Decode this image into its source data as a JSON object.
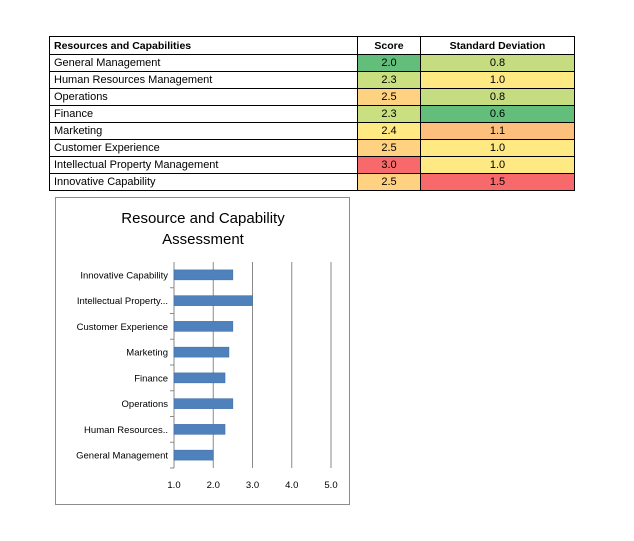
{
  "table": {
    "headers": {
      "name": "Resources and Capabilities",
      "score": "Score",
      "sd": "Standard Deviation"
    },
    "rows": [
      {
        "name": "General Management",
        "score": "2.0",
        "sd": "0.8",
        "score_color": "#63BE7B",
        "sd_color": "#C5DD80"
      },
      {
        "name": "Human Resources Management",
        "score": "2.3",
        "sd": "1.0",
        "score_color": "#C9DF80",
        "sd_color": "#FEE982"
      },
      {
        "name": "Operations",
        "score": "2.5",
        "sd": "0.8",
        "score_color": "#FED280",
        "sd_color": "#C5DD80"
      },
      {
        "name": "Finance",
        "score": "2.3",
        "sd": "0.6",
        "score_color": "#C9DF80",
        "sd_color": "#63BE7B"
      },
      {
        "name": "Marketing",
        "score": "2.4",
        "sd": "1.1",
        "score_color": "#FEE982",
        "sd_color": "#FDC07C"
      },
      {
        "name": "Customer Experience",
        "score": "2.5",
        "sd": "1.0",
        "score_color": "#FED280",
        "sd_color": "#FEE982"
      },
      {
        "name": "Intellectual Property Management",
        "score": "3.0",
        "sd": "1.0",
        "score_color": "#F8696B",
        "sd_color": "#FEE982"
      },
      {
        "name": "Innovative Capability",
        "score": "2.5",
        "sd": "1.5",
        "score_color": "#FED280",
        "sd_color": "#F8696B"
      }
    ]
  },
  "chart_data": {
    "type": "bar",
    "orientation": "horizontal",
    "title_lines": [
      "Resource and Capability",
      "Assessment"
    ],
    "categories": [
      "General Management",
      "Human Resources..",
      "Operations",
      "Finance",
      "Marketing",
      "Customer Experience",
      "Intellectual Property...",
      "Innovative Capability"
    ],
    "values": [
      2.0,
      2.3,
      2.5,
      2.3,
      2.4,
      2.5,
      3.0,
      2.5
    ],
    "xlim": [
      1.0,
      5.0
    ],
    "ticks": [
      "1.0",
      "2.0",
      "3.0",
      "4.0",
      "5.0"
    ],
    "grid": "vertical",
    "legend": "none",
    "bar_color": "#4F81BD"
  }
}
